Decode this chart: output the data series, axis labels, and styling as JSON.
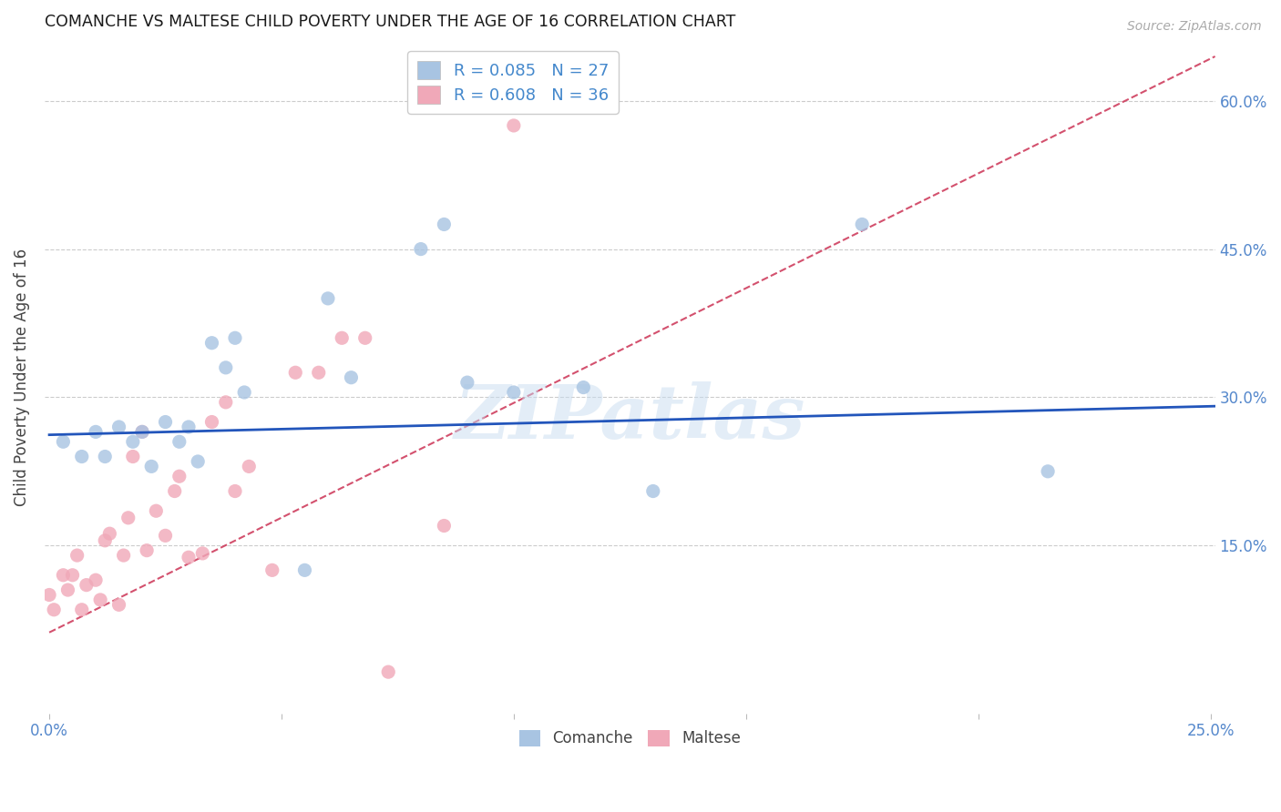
{
  "title": "COMANCHE VS MALTESE CHILD POVERTY UNDER THE AGE OF 16 CORRELATION CHART",
  "source": "Source: ZipAtlas.com",
  "ylabel": "Child Poverty Under the Age of 16",
  "xlim": [
    -0.001,
    0.251
  ],
  "ylim": [
    -0.02,
    0.66
  ],
  "xticks": [
    0.0,
    0.05,
    0.1,
    0.15,
    0.2,
    0.25
  ],
  "yticks": [
    0.15,
    0.3,
    0.45,
    0.6
  ],
  "comanche_R": 0.085,
  "comanche_N": 27,
  "maltese_R": 0.608,
  "maltese_N": 36,
  "comanche_color": "#a8c4e2",
  "maltese_color": "#f0a8b8",
  "comanche_line_color": "#2255bb",
  "maltese_line_color": "#cc3355",
  "comanche_x": [
    0.003,
    0.007,
    0.01,
    0.012,
    0.015,
    0.018,
    0.02,
    0.022,
    0.025,
    0.028,
    0.03,
    0.032,
    0.035,
    0.038,
    0.04,
    0.042,
    0.055,
    0.06,
    0.065,
    0.08,
    0.085,
    0.09,
    0.1,
    0.115,
    0.13,
    0.175,
    0.215
  ],
  "comanche_y": [
    0.255,
    0.24,
    0.265,
    0.24,
    0.27,
    0.255,
    0.265,
    0.23,
    0.275,
    0.255,
    0.27,
    0.235,
    0.355,
    0.33,
    0.36,
    0.305,
    0.125,
    0.4,
    0.32,
    0.45,
    0.475,
    0.315,
    0.305,
    0.31,
    0.205,
    0.475,
    0.225
  ],
  "maltese_x": [
    0.0,
    0.001,
    0.003,
    0.004,
    0.005,
    0.006,
    0.007,
    0.008,
    0.01,
    0.011,
    0.012,
    0.013,
    0.015,
    0.016,
    0.017,
    0.018,
    0.02,
    0.021,
    0.023,
    0.025,
    0.027,
    0.028,
    0.03,
    0.033,
    0.035,
    0.038,
    0.04,
    0.043,
    0.048,
    0.053,
    0.058,
    0.063,
    0.068,
    0.073,
    0.085,
    0.1
  ],
  "maltese_y": [
    0.1,
    0.085,
    0.12,
    0.105,
    0.12,
    0.14,
    0.085,
    0.11,
    0.115,
    0.095,
    0.155,
    0.162,
    0.09,
    0.14,
    0.178,
    0.24,
    0.265,
    0.145,
    0.185,
    0.16,
    0.205,
    0.22,
    0.138,
    0.142,
    0.275,
    0.295,
    0.205,
    0.23,
    0.125,
    0.325,
    0.325,
    0.36,
    0.36,
    0.022,
    0.17,
    0.575
  ],
  "comanche_line_x0": 0.0,
  "comanche_line_x1": 0.251,
  "comanche_line_y0": 0.262,
  "comanche_line_y1": 0.291,
  "maltese_line_x0": 0.0,
  "maltese_line_x1": 0.251,
  "maltese_line_y0": 0.062,
  "maltese_line_y1": 0.645
}
